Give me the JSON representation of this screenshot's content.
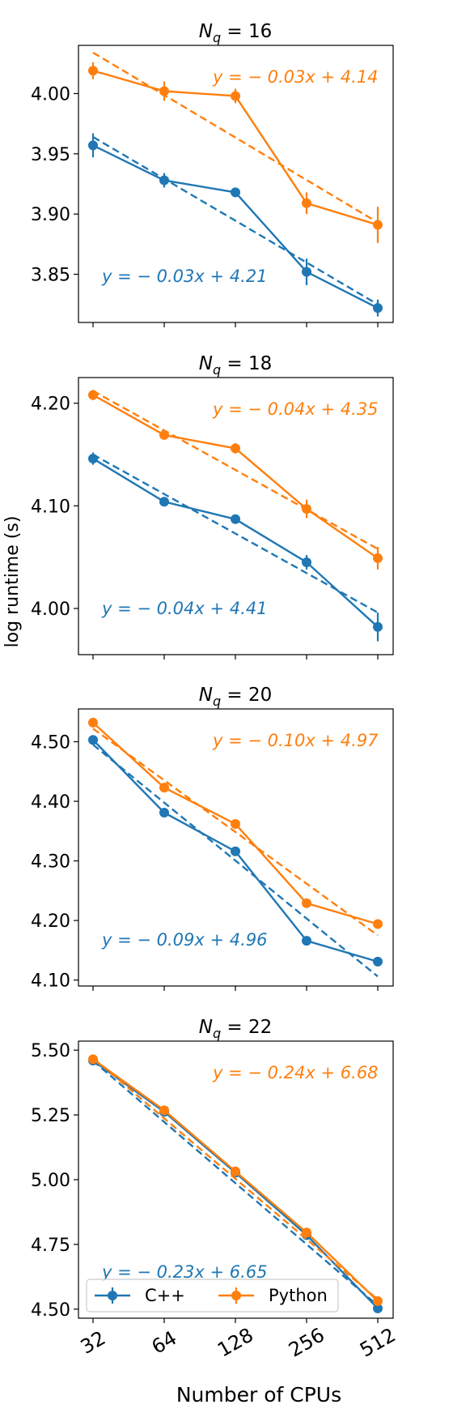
{
  "figure": {
    "ylabel": "log runtime (s)",
    "xlabel": "Number of CPUs"
  },
  "legend": {
    "entries": [
      {
        "name": "C++",
        "color": "#1f77b4"
      },
      {
        "name": "Python",
        "color": "#ff7f0e"
      }
    ],
    "placement": "lower-left of last panel"
  },
  "colors": {
    "cpp": "#1f77b4",
    "python": "#ff7f0e",
    "axis": "#000000"
  },
  "chart_data": [
    {
      "type": "line",
      "title_prefix": "N",
      "title_sub": "q",
      "title_suffix": " = 16",
      "x": [
        "32",
        "64",
        "128",
        "256",
        "512"
      ],
      "ylim": [
        3.81,
        4.04
      ],
      "yticks": [
        3.85,
        3.9,
        3.95,
        4.0
      ],
      "ytick_labels": [
        "3.85",
        "3.90",
        "3.95",
        "4.00"
      ],
      "series": [
        {
          "name": "C++",
          "values": [
            3.957,
            3.928,
            3.918,
            3.852,
            3.822
          ],
          "errors": [
            0.01,
            0.006,
            0.004,
            0.011,
            0.007
          ],
          "fit": {
            "label": "y = − 0.03x + 4.21",
            "start": 3.964,
            "end": 3.825
          }
        },
        {
          "name": "Python",
          "values": [
            4.019,
            4.002,
            3.998,
            3.909,
            3.891
          ],
          "errors": [
            0.007,
            0.008,
            0.006,
            0.009,
            0.015
          ],
          "fit": {
            "label": "y = − 0.03x + 4.14",
            "start": 4.034,
            "end": 3.893
          }
        }
      ]
    },
    {
      "type": "line",
      "title_prefix": "N",
      "title_sub": "q",
      "title_suffix": " = 18",
      "x": [
        "32",
        "64",
        "128",
        "256",
        "512"
      ],
      "ylim": [
        3.955,
        4.225
      ],
      "yticks": [
        4.0,
        4.1,
        4.2
      ],
      "ytick_labels": [
        "4.00",
        "4.10",
        "4.20"
      ],
      "series": [
        {
          "name": "C++",
          "values": [
            4.146,
            4.104,
            4.087,
            4.045,
            3.982
          ],
          "errors": [
            0.006,
            0.003,
            0.003,
            0.007,
            0.014
          ],
          "fit": {
            "label": "y = − 0.04x + 4.41",
            "start": 4.15,
            "end": 3.996
          }
        },
        {
          "name": "Python",
          "values": [
            4.208,
            4.169,
            4.156,
            4.097,
            4.049
          ],
          "errors": [
            0.005,
            0.004,
            0.005,
            0.009,
            0.011
          ],
          "fit": {
            "label": "y = − 0.04x + 4.35",
            "start": 4.212,
            "end": 4.058
          }
        }
      ]
    },
    {
      "type": "line",
      "title_prefix": "N",
      "title_sub": "q",
      "title_suffix": " = 20",
      "x": [
        "32",
        "64",
        "128",
        "256",
        "512"
      ],
      "ylim": [
        4.09,
        4.555
      ],
      "yticks": [
        4.1,
        4.2,
        4.3,
        4.4,
        4.5
      ],
      "ytick_labels": [
        "4.10",
        "4.20",
        "4.30",
        "4.40",
        "4.50"
      ],
      "series": [
        {
          "name": "C++",
          "values": [
            4.503,
            4.381,
            4.316,
            4.166,
            4.131
          ],
          "errors": [
            0.005,
            0.004,
            0.005,
            0.004,
            0.005
          ],
          "fit": {
            "label": "y = − 0.09x + 4.96",
            "start": 4.495,
            "end": 4.106
          }
        },
        {
          "name": "Python",
          "values": [
            4.532,
            4.423,
            4.362,
            4.229,
            4.194
          ],
          "errors": [
            0.005,
            0.006,
            0.006,
            0.005,
            0.007
          ],
          "fit": {
            "label": "y = − 0.10x + 4.97",
            "start": 4.522,
            "end": 4.175
          }
        }
      ]
    },
    {
      "type": "line",
      "title_prefix": "N",
      "title_sub": "q",
      "title_suffix": " = 22",
      "x": [
        "32",
        "64",
        "128",
        "256",
        "512"
      ],
      "ylim": [
        4.465,
        5.535
      ],
      "yticks": [
        4.5,
        4.75,
        5.0,
        5.25,
        5.5
      ],
      "ytick_labels": [
        "4.50",
        "4.75",
        "5.00",
        "5.25",
        "5.50"
      ],
      "series": [
        {
          "name": "C++",
          "values": [
            5.46,
            5.262,
            5.027,
            4.786,
            4.503
          ],
          "errors": [
            0.008,
            0.008,
            0.008,
            0.008,
            0.008
          ],
          "fit": {
            "label": "y = − 0.23x + 6.65",
            "start": 5.459,
            "end": 4.514
          }
        },
        {
          "name": "Python",
          "values": [
            5.465,
            5.268,
            5.032,
            4.796,
            4.531
          ],
          "errors": [
            0.008,
            0.008,
            0.008,
            0.008,
            0.008
          ],
          "fit": {
            "label": "y = − 0.24x + 6.68",
            "start": 5.47,
            "end": 4.537
          }
        }
      ]
    }
  ]
}
